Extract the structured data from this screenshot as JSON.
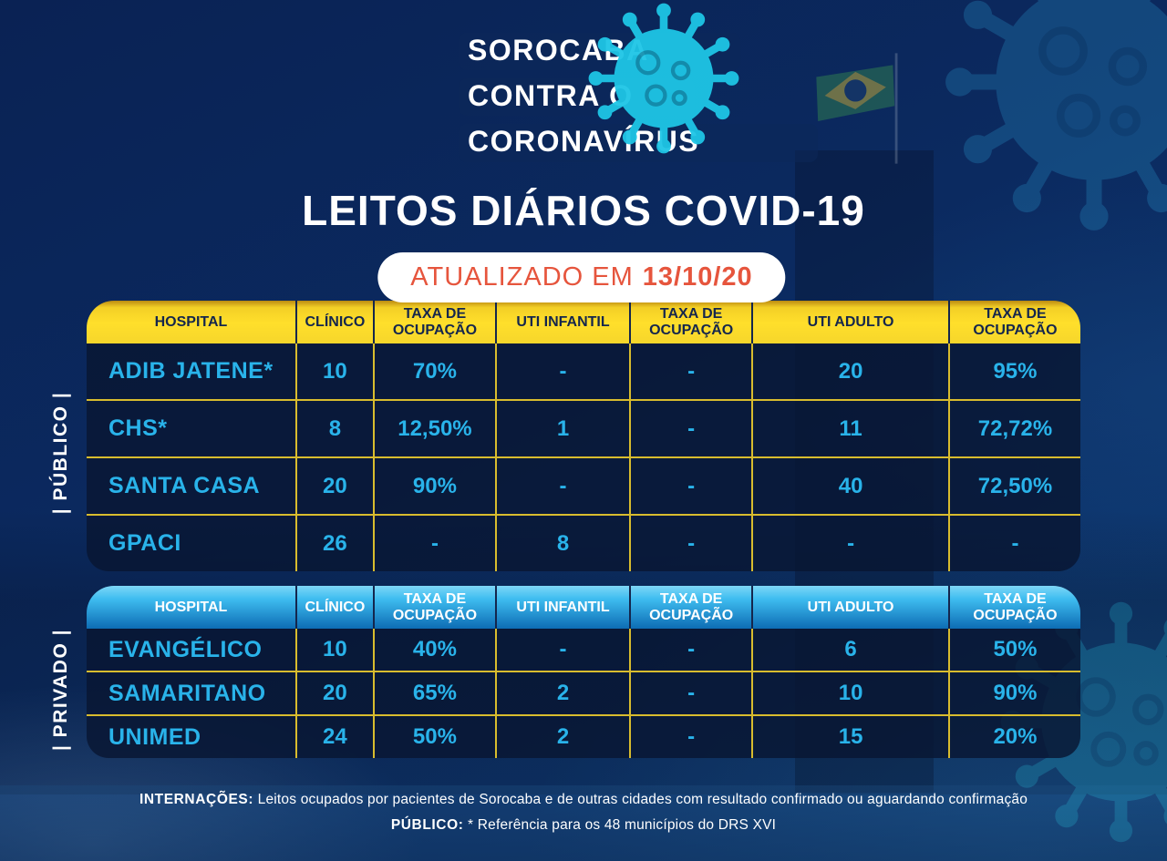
{
  "logo": {
    "line1": "SOROCABA",
    "line2": "CONTRA O",
    "line3": "CORONAVÍRUS"
  },
  "title": "LEITOS DIÁRIOS COVID-19",
  "updated": {
    "prefix": "ATUALIZADO EM",
    "date": "13/10/20"
  },
  "tables": [
    {
      "section_label": "| PÚBLICO |",
      "columns": [
        "HOSPITAL",
        "CLÍNICO",
        "TAXA DE OCUPAÇÃO",
        "UTI INFANTIL",
        "TAXA DE OCUPAÇÃO",
        "UTI ADULTO",
        "TAXA DE OCUPAÇÃO"
      ],
      "rows": [
        [
          "ADIB JATENE*",
          "10",
          "70%",
          "-",
          "-",
          "20",
          "95%"
        ],
        [
          "CHS*",
          "8",
          "12,50%",
          "1",
          "-",
          "11",
          "72,72%"
        ],
        [
          "SANTA CASA",
          "20",
          "90%",
          "-",
          "-",
          "40",
          "72,50%"
        ],
        [
          "GPACI",
          "26",
          "-",
          "8",
          "-",
          "-",
          "-"
        ]
      ]
    },
    {
      "section_label": "| PRIVADO |",
      "columns": [
        "HOSPITAL",
        "CLÍNICO",
        "TAXA DE OCUPAÇÃO",
        "UTI INFANTIL",
        "TAXA DE OCUPAÇÃO",
        "UTI ADULTO",
        "TAXA DE OCUPAÇÃO"
      ],
      "rows": [
        [
          "EVANGÉLICO",
          "10",
          "40%",
          "-",
          "-",
          "6",
          "50%"
        ],
        [
          "SAMARITANO",
          "20",
          "65%",
          "2",
          "-",
          "10",
          "90%"
        ],
        [
          "UNIMED",
          "24",
          "50%",
          "2",
          "-",
          "15",
          "20%"
        ]
      ]
    }
  ],
  "footer": {
    "line1_label": "INTERNAÇÕES:",
    "line1_text": "Leitos ocupados por pacientes de Sorocaba e de outras cidades com resultado confirmado ou aguardando confirmação",
    "line2_label": "PÚBLICO:",
    "line2_text": "* Referência para os 48 municípios do DRS XVI"
  },
  "colors": {
    "accent_yellow": "#ffdf2b",
    "header_blue_top": "#3fbdf0",
    "header_blue_bottom": "#0d6cb4",
    "cell_text_blue": "#29b3ea",
    "badge_text_orange": "#e6553d",
    "header_text_navy": "#14264d",
    "grid_line_yellow": "#d8bc2e",
    "virus_teal": "#1ec6e6"
  }
}
